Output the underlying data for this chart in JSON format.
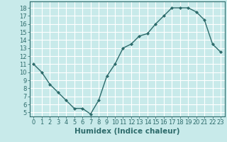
{
  "x": [
    0,
    1,
    2,
    3,
    4,
    5,
    6,
    7,
    8,
    9,
    10,
    11,
    12,
    13,
    14,
    15,
    16,
    17,
    18,
    19,
    20,
    21,
    22,
    23
  ],
  "y": [
    11,
    10,
    8.5,
    7.5,
    6.5,
    5.5,
    5.5,
    4.8,
    6.5,
    9.5,
    11,
    13,
    13.5,
    14.5,
    14.8,
    16,
    17,
    18,
    18,
    18,
    17.5,
    16.5,
    13.5,
    12.5
  ],
  "line_color": "#2d6b6b",
  "marker": "D",
  "marker_size": 2,
  "bg_color": "#c8eaea",
  "grid_color": "#ffffff",
  "xlabel": "Humidex (Indice chaleur)",
  "xlim": [
    -0.5,
    23.5
  ],
  "ylim": [
    4.5,
    18.8
  ],
  "yticks": [
    5,
    6,
    7,
    8,
    9,
    10,
    11,
    12,
    13,
    14,
    15,
    16,
    17,
    18
  ],
  "xticks": [
    0,
    1,
    2,
    3,
    4,
    5,
    6,
    7,
    8,
    9,
    10,
    11,
    12,
    13,
    14,
    15,
    16,
    17,
    18,
    19,
    20,
    21,
    22,
    23
  ],
  "tick_label_fontsize": 6,
  "xlabel_fontsize": 7.5,
  "text_color": "#2d6b6b",
  "spine_color": "#2d6b6b",
  "linewidth": 1.0
}
